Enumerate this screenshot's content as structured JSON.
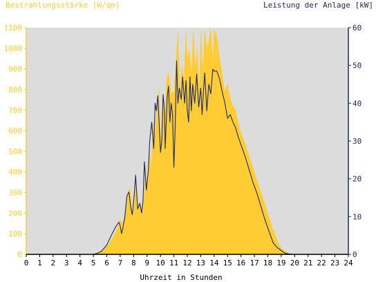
{
  "colors": {
    "plot_bg": "#dcdcdc",
    "irradiance_fill": "#ffcc33",
    "power_line": "#1a2a66",
    "left_axis_text": "#ffcc33",
    "right_axis_text": "#1a2a66"
  },
  "chart_data": {
    "type": "area",
    "title_left": "Bestrahlungsstärke [W/qm]",
    "title_right": "Leistung der Anlage [kW]",
    "xlabel": "Uhrzeit in Stunden",
    "xlim": [
      0,
      24
    ],
    "ylim_left": [
      0,
      1100
    ],
    "ylim_right": [
      0,
      60
    ],
    "x_ticks": [
      "0",
      "1",
      "2",
      "3",
      "4",
      "5",
      "6",
      "7",
      "8",
      "9",
      "10",
      "11",
      "12",
      "13",
      "14",
      "15",
      "16",
      "17",
      "18",
      "19",
      "20",
      "21",
      "22",
      "23",
      "24"
    ],
    "y_left_ticks": [
      "0",
      "100",
      "200",
      "300",
      "400",
      "500",
      "600",
      "700",
      "800",
      "900",
      "1000",
      "1100"
    ],
    "y_right_ticks": [
      "0",
      "10",
      "20",
      "30",
      "40",
      "50",
      "60"
    ],
    "grid": false,
    "series": [
      {
        "name": "Bestrahlungsstärke",
        "axis": "left",
        "x": [
          0,
          4.9,
          5.2,
          5.5,
          6.0,
          6.5,
          6.8,
          7.0,
          7.2,
          7.4,
          7.6,
          7.75,
          7.9,
          8.0,
          8.15,
          8.3,
          8.5,
          8.7,
          8.9,
          9.0,
          9.15,
          9.3,
          9.45,
          9.6,
          9.75,
          9.9,
          10.0,
          10.15,
          10.3,
          10.45,
          10.6,
          10.8,
          11.0,
          11.15,
          11.3,
          11.45,
          11.6,
          11.75,
          11.9,
          12.0,
          12.15,
          12.3,
          12.45,
          12.6,
          12.75,
          12.9,
          13.0,
          13.15,
          13.3,
          13.45,
          13.6,
          13.75,
          13.9,
          14.0,
          14.2,
          14.4,
          14.6,
          14.8,
          15.0,
          15.2,
          15.4,
          15.6,
          15.8,
          16.0,
          16.3,
          16.6,
          16.9,
          17.2,
          17.5,
          17.8,
          18.1,
          18.4,
          18.7,
          19.0,
          19.3,
          19.6,
          19.9,
          20.2,
          20.5,
          24
        ],
        "values": [
          0,
          0,
          5,
          15,
          40,
          90,
          130,
          170,
          150,
          230,
          310,
          320,
          200,
          260,
          390,
          220,
          260,
          200,
          450,
          300,
          520,
          420,
          650,
          580,
          720,
          810,
          540,
          760,
          650,
          850,
          890,
          780,
          790,
          940,
          1100,
          800,
          920,
          850,
          1100,
          950,
          1000,
          880,
          1100,
          920,
          1000,
          800,
          1100,
          900,
          1100,
          1000,
          1040,
          1100,
          950,
          1100,
          1060,
          960,
          880,
          790,
          830,
          760,
          720,
          700,
          640,
          590,
          540,
          480,
          420,
          360,
          300,
          240,
          180,
          120,
          70,
          30,
          15,
          5,
          2,
          0,
          0,
          0
        ]
      },
      {
        "name": "Leistung",
        "axis": "right",
        "x": [
          0,
          5.0,
          5.3,
          5.6,
          6.0,
          6.4,
          6.7,
          6.9,
          7.0,
          7.1,
          7.2,
          7.35,
          7.5,
          7.65,
          7.8,
          7.9,
          8.05,
          8.15,
          8.3,
          8.45,
          8.6,
          8.7,
          8.8,
          8.95,
          9.1,
          9.2,
          9.35,
          9.5,
          9.6,
          9.7,
          9.8,
          9.9,
          10.0,
          10.1,
          10.2,
          10.3,
          10.35,
          10.5,
          10.6,
          10.7,
          10.8,
          10.9,
          11.0,
          11.1,
          11.2,
          11.3,
          11.4,
          11.55,
          11.65,
          11.8,
          11.9,
          12.0,
          12.1,
          12.2,
          12.3,
          12.4,
          12.55,
          12.7,
          12.85,
          13.0,
          13.1,
          13.2,
          13.3,
          13.45,
          13.6,
          13.75,
          13.9,
          14.0,
          14.2,
          14.4,
          14.6,
          14.8,
          15.0,
          15.2,
          15.4,
          15.6,
          15.8,
          16.0,
          16.3,
          16.6,
          16.9,
          17.2,
          17.5,
          17.8,
          18.1,
          18.4,
          18.7,
          19.0,
          19.3,
          19.6,
          19.9,
          20.2,
          20.5,
          24
        ],
        "values": [
          0,
          0,
          0.3,
          0.8,
          2.5,
          5.5,
          7.5,
          8.5,
          7.5,
          5.5,
          7,
          10,
          15.5,
          16.5,
          12,
          10.5,
          16,
          21,
          12,
          13.5,
          11,
          14,
          24.5,
          17,
          22.5,
          30,
          35,
          28,
          40,
          38,
          42,
          35,
          27,
          30,
          42.3,
          38,
          28,
          41.5,
          44.5,
          35,
          40,
          37,
          23,
          34,
          51.2,
          40,
          44,
          41,
          47,
          40,
          46,
          38,
          35,
          47,
          38,
          45,
          40,
          47.7,
          39,
          44,
          37,
          43,
          48,
          38,
          45,
          42.5,
          49,
          48.5,
          48.5,
          46.5,
          43,
          40,
          36,
          37,
          35,
          33.5,
          31,
          29,
          26,
          22.5,
          19,
          16,
          12.5,
          9,
          6,
          3,
          1.8,
          1,
          0.3,
          0.1,
          0,
          0,
          0,
          0
        ]
      }
    ]
  }
}
